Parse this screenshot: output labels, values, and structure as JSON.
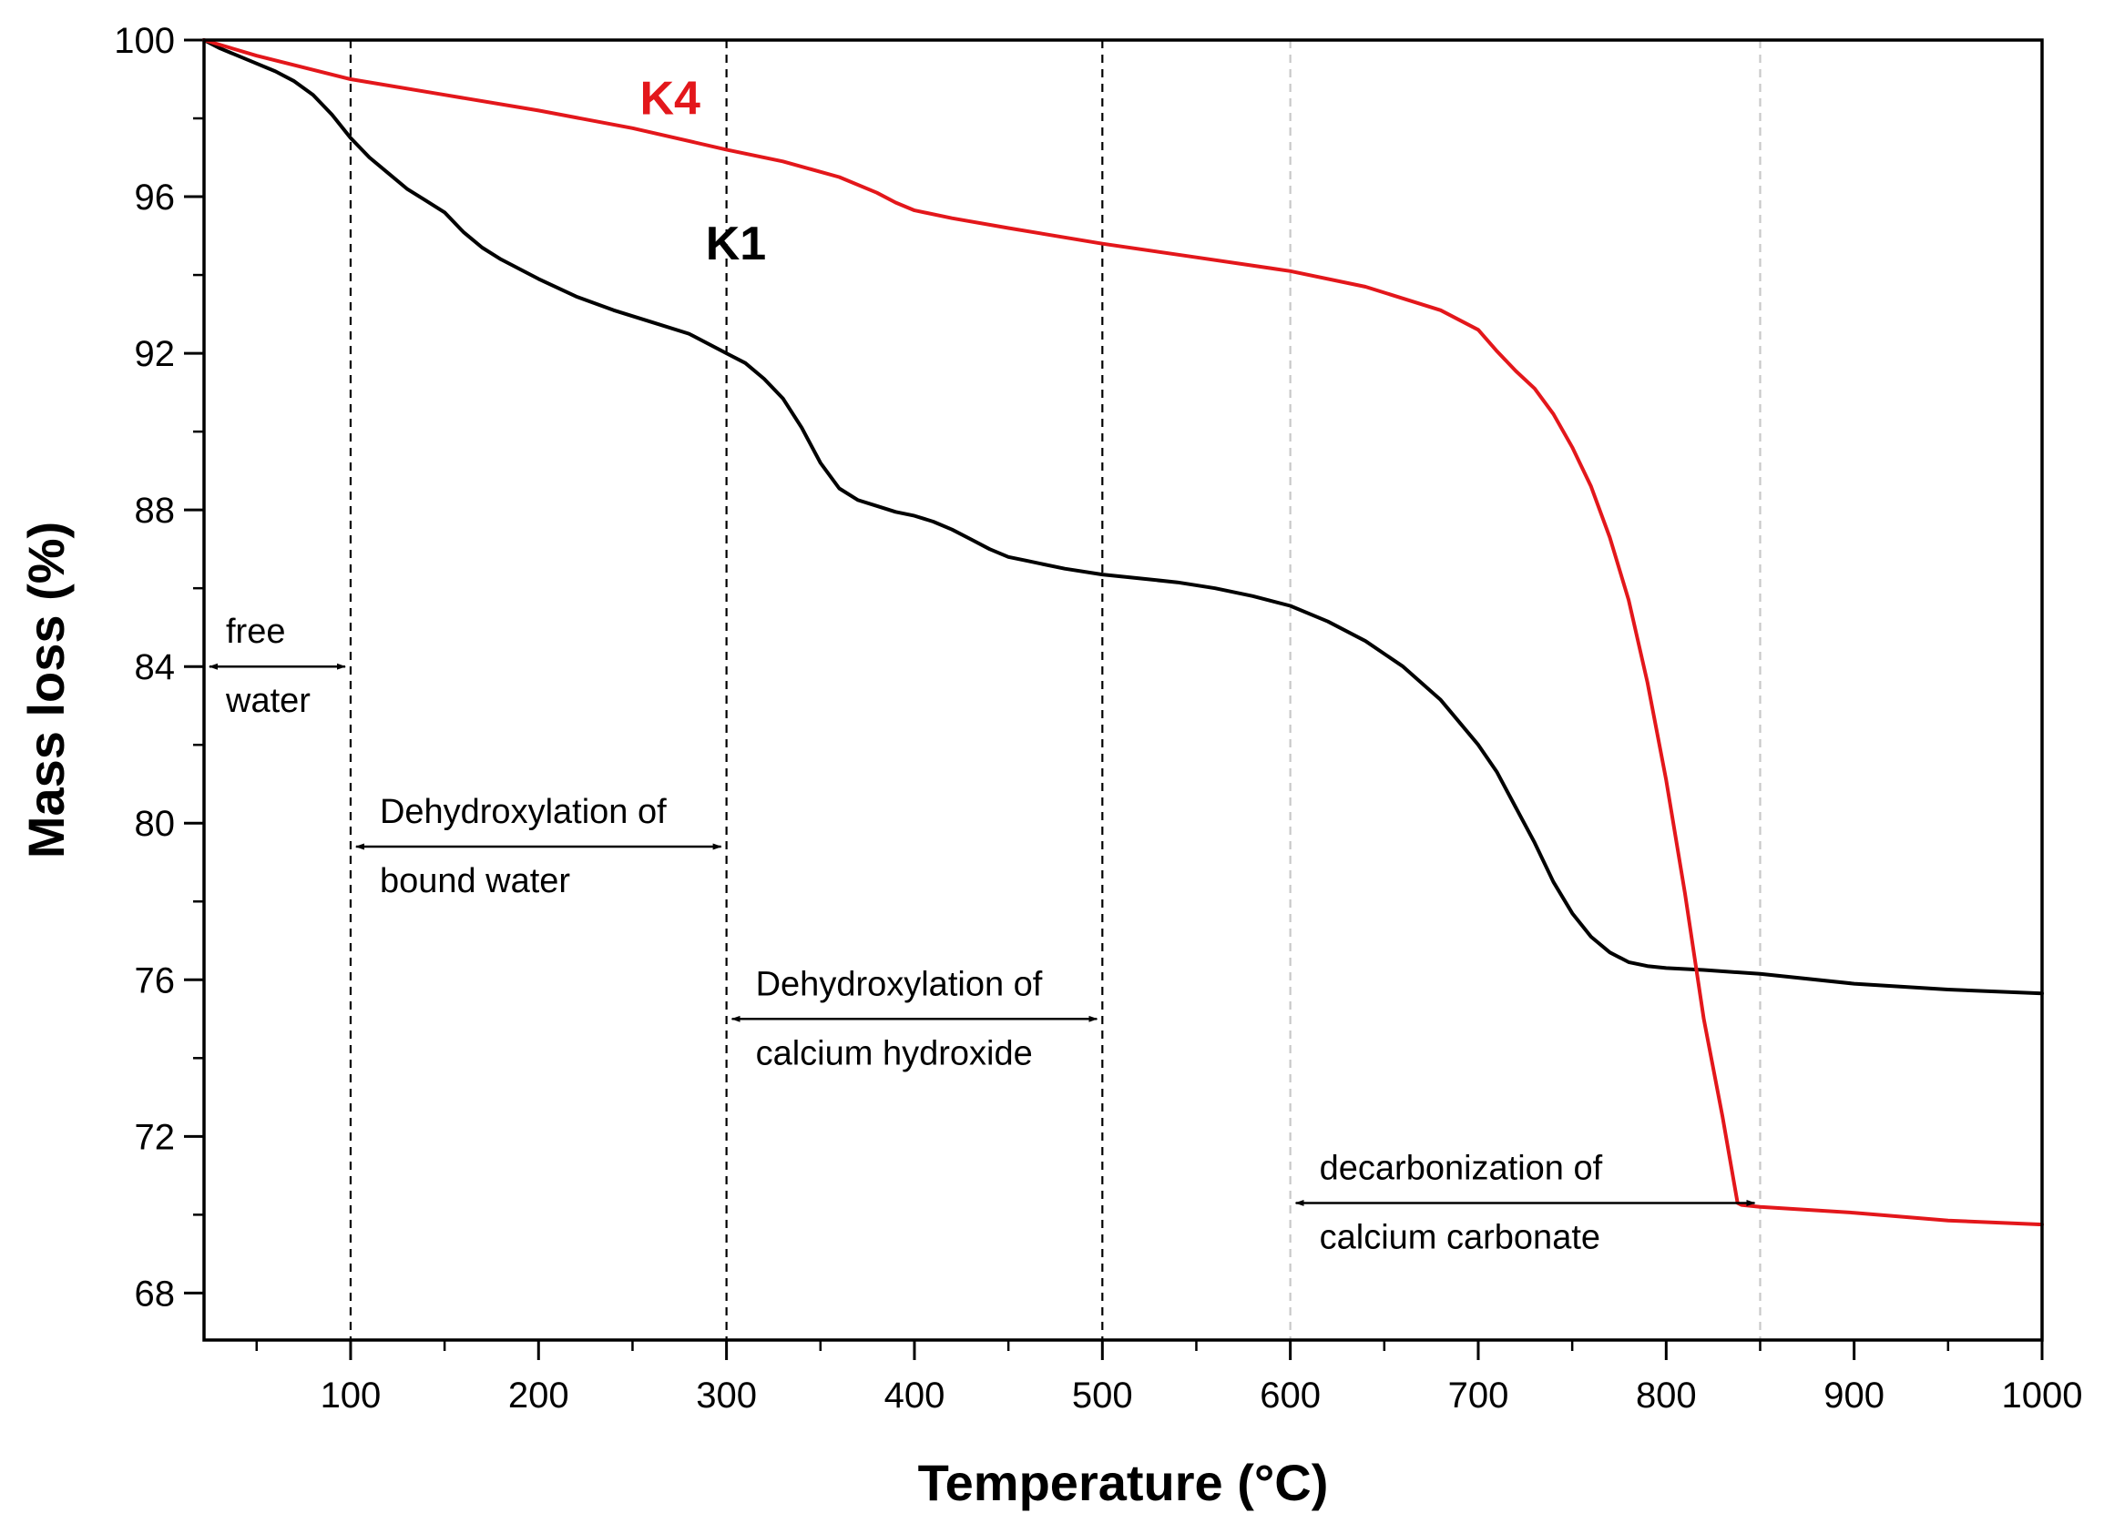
{
  "chart_data": {
    "type": "line",
    "xlabel": "Temperature (°C)",
    "ylabel": "Mass loss (%)",
    "xlim": [
      22,
      1000
    ],
    "ylim": [
      66.8,
      100
    ],
    "xticks": [
      100,
      200,
      300,
      400,
      500,
      600,
      700,
      800,
      900,
      1000
    ],
    "yticks": [
      68,
      72,
      76,
      80,
      84,
      88,
      92,
      96,
      100
    ],
    "series": [
      {
        "name": "K1",
        "color": "#000000",
        "x": [
          22,
          30,
          40,
          50,
          60,
          70,
          80,
          90,
          100,
          110,
          120,
          130,
          140,
          150,
          160,
          170,
          180,
          200,
          220,
          240,
          260,
          280,
          300,
          310,
          320,
          330,
          340,
          350,
          360,
          370,
          380,
          390,
          400,
          410,
          420,
          430,
          440,
          450,
          460,
          480,
          500,
          520,
          540,
          560,
          580,
          600,
          620,
          640,
          660,
          680,
          700,
          710,
          720,
          730,
          740,
          750,
          760,
          770,
          780,
          790,
          800,
          820,
          850,
          900,
          950,
          1000
        ],
        "values": [
          100,
          99.8,
          99.6,
          99.4,
          99.2,
          98.95,
          98.6,
          98.1,
          97.5,
          97.0,
          96.6,
          96.2,
          95.9,
          95.6,
          95.1,
          94.7,
          94.4,
          93.9,
          93.45,
          93.1,
          92.8,
          92.5,
          92.0,
          91.75,
          91.35,
          90.85,
          90.1,
          89.2,
          88.55,
          88.25,
          88.1,
          87.95,
          87.85,
          87.7,
          87.5,
          87.25,
          87.0,
          86.8,
          86.7,
          86.5,
          86.35,
          86.25,
          86.15,
          86.0,
          85.8,
          85.55,
          85.15,
          84.65,
          84.0,
          83.15,
          82.0,
          81.3,
          80.4,
          79.5,
          78.5,
          77.7,
          77.1,
          76.7,
          76.45,
          76.35,
          76.3,
          76.25,
          76.15,
          75.9,
          75.75,
          75.65
        ]
      },
      {
        "name": "K4",
        "color": "#e3171b",
        "x": [
          22,
          50,
          100,
          150,
          200,
          250,
          300,
          330,
          360,
          380,
          390,
          400,
          420,
          450,
          500,
          550,
          600,
          640,
          680,
          700,
          710,
          720,
          730,
          740,
          750,
          760,
          770,
          780,
          790,
          800,
          810,
          820,
          830,
          838,
          840,
          850,
          900,
          950,
          1000
        ],
        "values": [
          100,
          99.6,
          99.0,
          98.6,
          98.2,
          97.75,
          97.2,
          96.9,
          96.5,
          96.1,
          95.85,
          95.65,
          95.45,
          95.2,
          94.8,
          94.45,
          94.1,
          93.7,
          93.1,
          92.6,
          92.05,
          91.55,
          91.1,
          90.45,
          89.6,
          88.6,
          87.3,
          85.7,
          83.6,
          81.1,
          78.2,
          75.0,
          72.5,
          70.3,
          70.25,
          70.2,
          70.05,
          69.85,
          69.75
        ]
      }
    ],
    "reference_lines": [
      {
        "x": 100,
        "style": "dashed",
        "color": "#000000"
      },
      {
        "x": 300,
        "style": "dashed",
        "color": "#000000"
      },
      {
        "x": 500,
        "style": "dashed",
        "color": "#000000"
      },
      {
        "x": 600,
        "style": "dashed",
        "color": "#c8c8c8"
      },
      {
        "x": 850,
        "style": "dashed",
        "color": "#c8c8c8"
      }
    ],
    "annotations": [
      {
        "line1": "free",
        "line2": "water",
        "from_x": 22,
        "to_x": 100,
        "at_y": 84
      },
      {
        "line1": "Dehydroxylation of",
        "line2": "bound water",
        "from_x": 100,
        "to_x": 300,
        "at_y": 79.4
      },
      {
        "line1": "Dehydroxylation of",
        "line2": "calcium hydroxide",
        "from_x": 300,
        "to_x": 500,
        "at_y": 75.0
      },
      {
        "line1": "decarbonization of",
        "line2": "calcium carbonate",
        "from_x": 600,
        "to_x": 850,
        "at_y": 70.3
      }
    ],
    "series_labels": [
      {
        "text": "K4",
        "x": 270,
        "y": 98.1,
        "color": "#e3171b"
      },
      {
        "text": "K1",
        "x": 305,
        "y": 94.4,
        "color": "#000000"
      }
    ]
  }
}
